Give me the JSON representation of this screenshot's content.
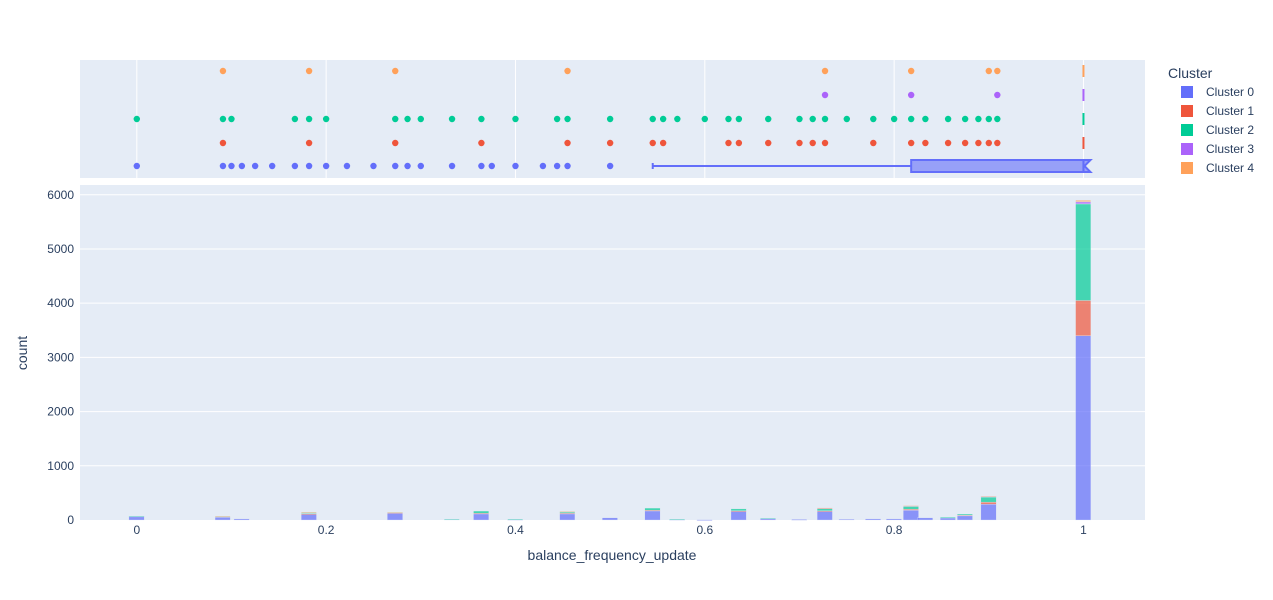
{
  "chart_data": {
    "type": "bar",
    "barmode": "stack",
    "marginal": "box-with-points",
    "xlabel": "balance_frequency_update",
    "ylabel": "count",
    "xlim": [
      -0.06,
      1.065
    ],
    "ylim": [
      0,
      6180
    ],
    "x_ticks": [
      0,
      0.2,
      0.4,
      0.6,
      0.8,
      1
    ],
    "x_tick_labels": [
      "0",
      "0.2",
      "0.4",
      "0.6",
      "0.8",
      "1"
    ],
    "y_ticks": [
      0,
      1000,
      2000,
      3000,
      4000,
      5000,
      6000
    ],
    "y_tick_labels": [
      "0",
      "1000",
      "2000",
      "3000",
      "4000",
      "5000",
      "6000"
    ],
    "grid": true,
    "legend_title": "Cluster",
    "legend_position": "right",
    "bin_width": 0.0167,
    "series": [
      {
        "name": "Cluster 0",
        "color": "#636efa",
        "bins": [
          {
            "x": 0,
            "count": 70
          },
          {
            "x": 0.091,
            "count": 60
          },
          {
            "x": 0.111,
            "count": 20
          },
          {
            "x": 0.182,
            "count": 110
          },
          {
            "x": 0.273,
            "count": 130
          },
          {
            "x": 0.333,
            "count": 15
          },
          {
            "x": 0.364,
            "count": 120
          },
          {
            "x": 0.4,
            "count": 10
          },
          {
            "x": 0.455,
            "count": 120
          },
          {
            "x": 0.5,
            "count": 40
          },
          {
            "x": 0.545,
            "count": 170
          },
          {
            "x": 0.571,
            "count": 10
          },
          {
            "x": 0.6,
            "count": 5
          },
          {
            "x": 0.636,
            "count": 160
          },
          {
            "x": 0.667,
            "count": 30
          },
          {
            "x": 0.7,
            "count": 10
          },
          {
            "x": 0.727,
            "count": 160
          },
          {
            "x": 0.75,
            "count": 15
          },
          {
            "x": 0.778,
            "count": 20
          },
          {
            "x": 0.8,
            "count": 20
          },
          {
            "x": 0.818,
            "count": 180
          },
          {
            "x": 0.833,
            "count": 40
          },
          {
            "x": 0.857,
            "count": 40
          },
          {
            "x": 0.875,
            "count": 80
          },
          {
            "x": 0.9,
            "count": 290
          },
          {
            "x": 1,
            "count": 3400
          }
        ]
      },
      {
        "name": "Cluster 1",
        "color": "#ef553b",
        "bins": [
          {
            "x": 0.091,
            "count": 3
          },
          {
            "x": 0.182,
            "count": 5
          },
          {
            "x": 0.273,
            "count": 5
          },
          {
            "x": 0.364,
            "count": 5
          },
          {
            "x": 0.455,
            "count": 5
          },
          {
            "x": 0.545,
            "count": 10
          },
          {
            "x": 0.636,
            "count": 10
          },
          {
            "x": 0.727,
            "count": 10
          },
          {
            "x": 0.818,
            "count": 20
          },
          {
            "x": 0.875,
            "count": 10
          },
          {
            "x": 0.9,
            "count": 40
          },
          {
            "x": 1,
            "count": 650
          }
        ]
      },
      {
        "name": "Cluster 2",
        "color": "#00cc96",
        "bins": [
          {
            "x": 0,
            "count": 2
          },
          {
            "x": 0.091,
            "count": 5
          },
          {
            "x": 0.182,
            "count": 25
          },
          {
            "x": 0.273,
            "count": 10
          },
          {
            "x": 0.333,
            "count": 2
          },
          {
            "x": 0.364,
            "count": 40
          },
          {
            "x": 0.4,
            "count": 5
          },
          {
            "x": 0.455,
            "count": 30
          },
          {
            "x": 0.545,
            "count": 40
          },
          {
            "x": 0.571,
            "count": 5
          },
          {
            "x": 0.636,
            "count": 35
          },
          {
            "x": 0.667,
            "count": 5
          },
          {
            "x": 0.727,
            "count": 50
          },
          {
            "x": 0.818,
            "count": 60
          },
          {
            "x": 0.857,
            "count": 10
          },
          {
            "x": 0.875,
            "count": 20
          },
          {
            "x": 0.9,
            "count": 100
          },
          {
            "x": 1,
            "count": 1780
          }
        ]
      },
      {
        "name": "Cluster 3",
        "color": "#ab63fa",
        "bins": [
          {
            "x": 0.727,
            "count": 2
          },
          {
            "x": 0.818,
            "count": 3
          },
          {
            "x": 0.9,
            "count": 5
          },
          {
            "x": 1,
            "count": 40
          }
        ]
      },
      {
        "name": "Cluster 4",
        "color": "#ffa15a",
        "bins": [
          {
            "x": 0.091,
            "count": 2
          },
          {
            "x": 0.182,
            "count": 2
          },
          {
            "x": 0.273,
            "count": 2
          },
          {
            "x": 0.455,
            "count": 2
          },
          {
            "x": 0.727,
            "count": 2
          },
          {
            "x": 0.818,
            "count": 3
          },
          {
            "x": 0.9,
            "count": 5
          },
          {
            "x": 1,
            "count": 30
          }
        ]
      }
    ],
    "marginal_points": [
      {
        "name": "Cluster 0",
        "color": "#636efa",
        "points": [
          0,
          0.091,
          0.1,
          0.111,
          0.125,
          0.143,
          0.167,
          0.182,
          0.2,
          0.222,
          0.25,
          0.273,
          0.286,
          0.3,
          0.333,
          0.364,
          0.375,
          0.4,
          0.429,
          0.444,
          0.455,
          0.5
        ]
      },
      {
        "name": "Cluster 1",
        "color": "#ef553b",
        "points": [
          0.091,
          0.182,
          0.273,
          0.364,
          0.455,
          0.5,
          0.545,
          0.556,
          0.625,
          0.636,
          0.667,
          0.7,
          0.714,
          0.727,
          0.778,
          0.818,
          0.833,
          0.857,
          0.875,
          0.889,
          0.9,
          0.909
        ]
      },
      {
        "name": "Cluster 2",
        "color": "#00cc96",
        "points": [
          0,
          0.091,
          0.1,
          0.167,
          0.182,
          0.2,
          0.273,
          0.286,
          0.3,
          0.333,
          0.364,
          0.4,
          0.444,
          0.455,
          0.5,
          0.545,
          0.556,
          0.571,
          0.6,
          0.625,
          0.636,
          0.667,
          0.7,
          0.714,
          0.727,
          0.75,
          0.778,
          0.8,
          0.818,
          0.833,
          0.857,
          0.875,
          0.889,
          0.9,
          0.909
        ]
      },
      {
        "name": "Cluster 3",
        "color": "#ab63fa",
        "points": [
          0.727,
          0.818,
          0.909
        ]
      },
      {
        "name": "Cluster 4",
        "color": "#ffa15a",
        "points": [
          0.091,
          0.182,
          0.273,
          0.455,
          0.727,
          0.818,
          0.9,
          0.909
        ]
      }
    ],
    "marginal_boxes": [
      {
        "name": "Cluster 0",
        "color": "#636efa",
        "lower_fence": 0.545,
        "q1": 0.818,
        "median": 1,
        "q3": 1,
        "upper_fence": 1
      },
      {
        "name": "Cluster 1",
        "color": "#ef553b",
        "lower_fence": 1,
        "q1": 1,
        "median": 1,
        "q3": 1,
        "upper_fence": 1
      },
      {
        "name": "Cluster 2",
        "color": "#00cc96",
        "lower_fence": 1,
        "q1": 1,
        "median": 1,
        "q3": 1,
        "upper_fence": 1
      },
      {
        "name": "Cluster 3",
        "color": "#ab63fa",
        "lower_fence": 1,
        "q1": 1,
        "median": 1,
        "q3": 1,
        "upper_fence": 1
      },
      {
        "name": "Cluster 4",
        "color": "#ffa15a",
        "lower_fence": 1,
        "q1": 1,
        "median": 1,
        "q3": 1,
        "upper_fence": 1
      }
    ]
  }
}
